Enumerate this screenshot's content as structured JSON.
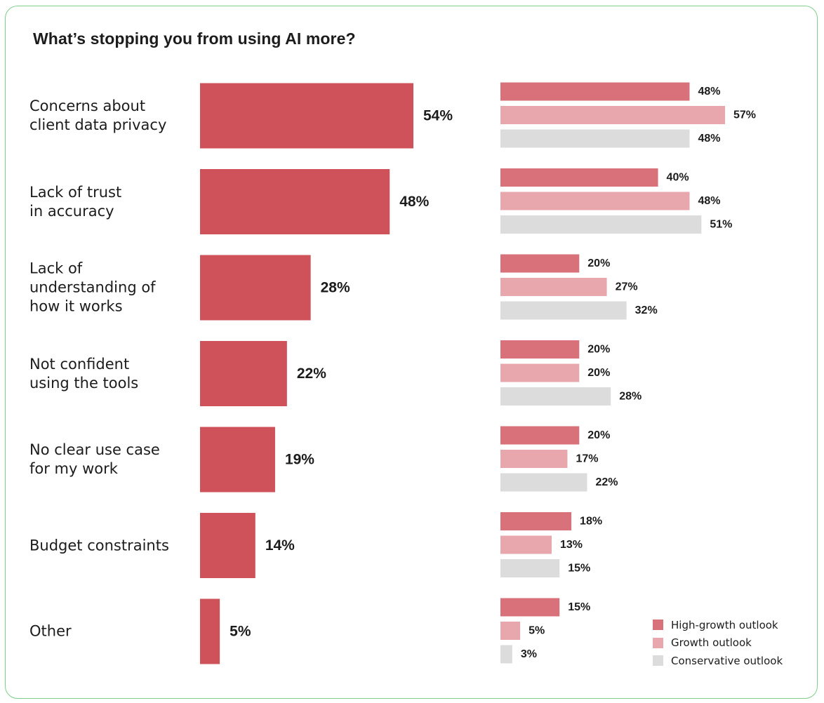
{
  "title": "What’s stopping you from using AI more?",
  "chart_data": {
    "type": "bar",
    "categories": [
      "Concerns about\nclient data privacy",
      "Lack of trust\nin accuracy",
      "Lack of\nunderstanding of\nhow it works",
      "Not confident\nusing the tools",
      "No clear use case\nfor my work",
      "Budget constraints",
      "Other"
    ],
    "overall": {
      "values": [
        54,
        48,
        28,
        22,
        19,
        14,
        5
      ],
      "labels": [
        "54%",
        "48%",
        "28%",
        "22%",
        "19%",
        "14%",
        "5%"
      ],
      "color": "#cf525a"
    },
    "series": [
      {
        "name": "High-growth outlook",
        "color": "#d9717a",
        "values": [
          48,
          40,
          20,
          20,
          20,
          18,
          15
        ],
        "labels": [
          "48%",
          "40%",
          "20%",
          "20%",
          "20%",
          "18%",
          "15%"
        ]
      },
      {
        "name": "Growth outlook",
        "color": "#e8a7ac",
        "values": [
          57,
          48,
          27,
          20,
          17,
          13,
          5
        ],
        "labels": [
          "57%",
          "48%",
          "27%",
          "20%",
          "17%",
          "13%",
          "5%"
        ]
      },
      {
        "name": "Conservative outlook",
        "color": "#dcdcdc",
        "values": [
          48,
          51,
          32,
          28,
          22,
          15,
          3
        ],
        "labels": [
          "48%",
          "51%",
          "32%",
          "28%",
          "22%",
          "15%",
          "3%"
        ]
      }
    ],
    "legend_position": "bottom-right",
    "grid": false
  }
}
